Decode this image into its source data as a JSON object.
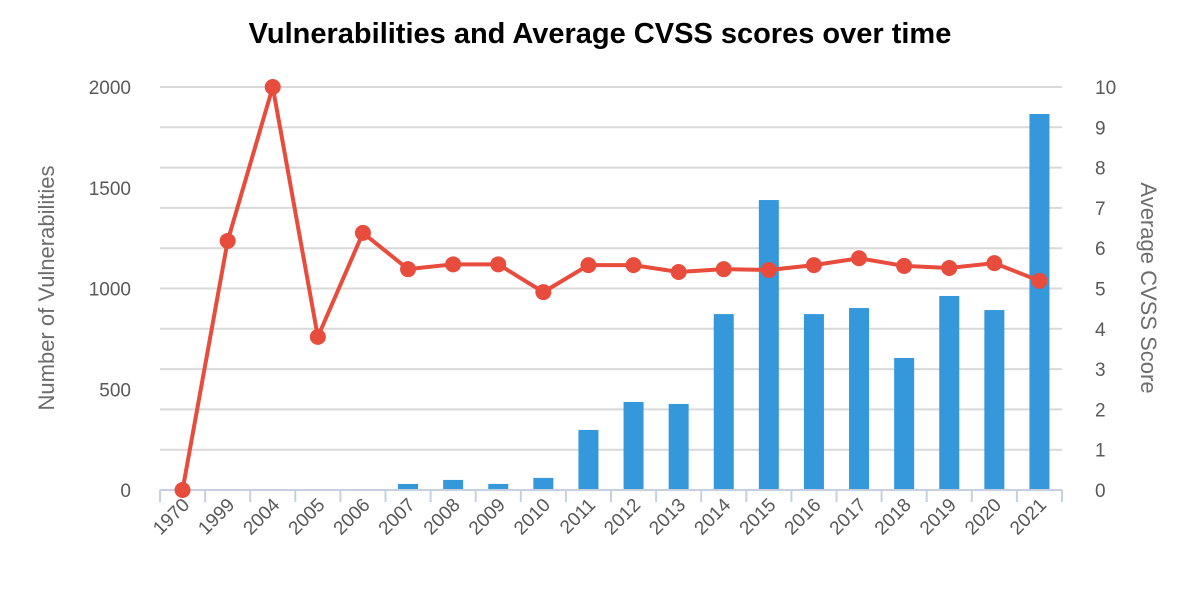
{
  "chart_data": {
    "type": "bar+line",
    "title": "Vulnerabilities and Average CVSS scores over time",
    "categories": [
      "1970",
      "1999",
      "2004",
      "2005",
      "2006",
      "2007",
      "2008",
      "2009",
      "2010",
      "2011",
      "2012",
      "2013",
      "2014",
      "2015",
      "2016",
      "2017",
      "2018",
      "2019",
      "2020",
      "2021"
    ],
    "series": [
      {
        "type": "bar",
        "axis": "left",
        "color": "#3598db",
        "values": [
          0,
          0,
          0,
          0,
          0,
          30,
          50,
          30,
          60,
          298,
          437,
          427,
          873,
          1439,
          873,
          903,
          655,
          963,
          893,
          1866
        ]
      },
      {
        "type": "line",
        "axis": "right",
        "color": "#e74c3c",
        "values": [
          0,
          6.18,
          10,
          3.8,
          6.38,
          5.48,
          5.6,
          5.6,
          4.91,
          5.58,
          5.58,
          5.41,
          5.48,
          5.46,
          5.58,
          5.75,
          5.56,
          5.51,
          5.63,
          5.19
        ]
      }
    ],
    "ylabel": "Number of Vulnerabilities",
    "ylim": [
      0,
      2000
    ],
    "yticks": [
      "0",
      "500",
      "1000",
      "1500",
      "2000"
    ],
    "y2label": "Average CVSS Score",
    "y2lim": [
      0,
      10
    ],
    "y2ticks": [
      "0",
      "1",
      "2",
      "3",
      "4",
      "5",
      "6",
      "7",
      "8",
      "9",
      "10"
    ],
    "grid": true,
    "legend": "none"
  }
}
